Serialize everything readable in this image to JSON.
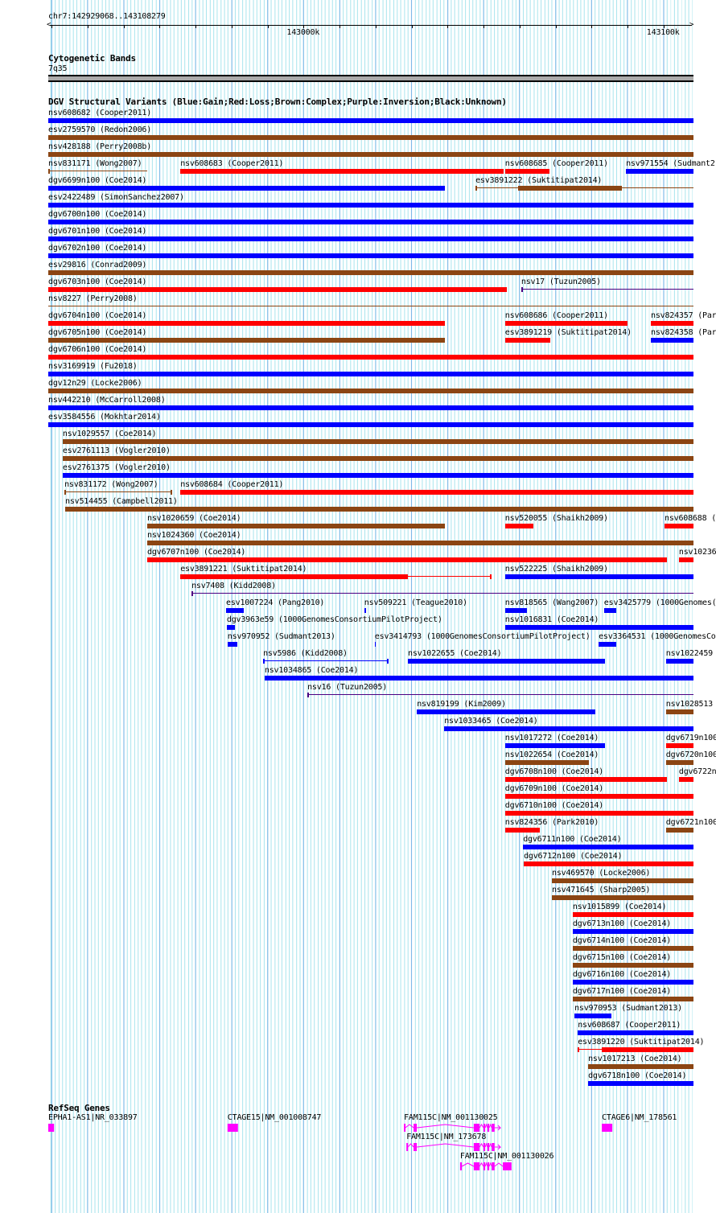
{
  "ruler": {
    "range": "chr7:142929068..143108279",
    "region_start_kb": 142929.068,
    "region_length_kb": 179.2,
    "ticks": [
      {
        "label": "143000k",
        "kb": 143000
      },
      {
        "label": "143100k",
        "kb": 143100
      }
    ]
  },
  "cytoband": {
    "title": "Cytogenetic Bands",
    "band": "7q35"
  },
  "colors": {
    "gain": "#0000ff",
    "loss": "#ff0000",
    "complex": "#8b4513",
    "inversion": "#4b0082",
    "unknown": "#000000",
    "gene": "#ff00ff"
  },
  "dgv": {
    "title": "DGV Structural Variants (Blue:Gain;Red:Loss;Brown:Complex;Purple:Inversion;Black:Unknown)",
    "rows": [
      [
        {
          "l": "nsv608682 (Cooper2011)",
          "s": 0,
          "e": 179.2,
          "c": "gain"
        }
      ],
      [
        {
          "l": "esv2759570 (Redon2006)",
          "s": 0,
          "e": 179.2,
          "c": "complex"
        }
      ],
      [
        {
          "l": "nsv428188 (Perry2008b)",
          "s": 0,
          "e": 179.2,
          "c": "complex"
        }
      ],
      [
        {
          "l": "nsv831171 (Wong2007)",
          "s": 0,
          "e": 27.5,
          "c": "complex",
          "st": "line"
        },
        {
          "l": "nsv608683 (Cooper2011)",
          "s": 36.7,
          "e": 126.5,
          "c": "loss"
        },
        {
          "l": "nsv608685 (Cooper2011)",
          "s": 126.9,
          "e": 139.2,
          "c": "loss"
        },
        {
          "l": "nsv971554 (Sudmant2",
          "s": 160.5,
          "e": 179.2,
          "c": "gain"
        }
      ],
      [
        {
          "l": "dgv6699n100 (Coe2014)",
          "s": 0,
          "e": 110.2,
          "c": "gain"
        },
        {
          "l": "esv3891222 (Suktitipat2014)",
          "s": 118.7,
          "e": 179.2,
          "c": "complex",
          "st": "line",
          "th": [
            130.5,
            159.4
          ]
        }
      ],
      [
        {
          "l": "esv2422489 (SimonSanchez2007)",
          "s": 0,
          "e": 179.2,
          "c": "gain"
        }
      ],
      [
        {
          "l": "dgv6700n100 (Coe2014)",
          "s": 0,
          "e": 179.2,
          "c": "gain"
        }
      ],
      [
        {
          "l": "dgv6701n100 (Coe2014)",
          "s": 0,
          "e": 179.2,
          "c": "gain"
        }
      ],
      [
        {
          "l": "dgv6702n100 (Coe2014)",
          "s": 0,
          "e": 179.2,
          "c": "gain"
        }
      ],
      [
        {
          "l": "esv29816 (Conrad2009)",
          "s": 0,
          "e": 179.2,
          "c": "complex"
        }
      ],
      [
        {
          "l": "dgv6703n100 (Coe2014)",
          "s": 0,
          "e": 127.4,
          "c": "loss"
        },
        {
          "l": "nsv17 (Tuzun2005)",
          "s": 131.4,
          "e": 179.2,
          "c": "inversion",
          "st": "line"
        }
      ],
      [
        {
          "l": "nsv8227 (Perry2008)",
          "s": 0,
          "e": 179.2,
          "c": "complex",
          "st": "line",
          "nt": true
        }
      ],
      [
        {
          "l": "dgv6704n100 (Coe2014)",
          "s": 0,
          "e": 110.2,
          "c": "loss"
        },
        {
          "l": "nsv608686 (Cooper2011)",
          "s": 126.9,
          "e": 161.0,
          "c": "loss"
        },
        {
          "l": "nsv824357 (Par",
          "s": 167.4,
          "e": 179.2,
          "c": "loss"
        }
      ],
      [
        {
          "l": "dgv6705n100 (Coe2014)",
          "s": 0,
          "e": 110.2,
          "c": "complex"
        },
        {
          "l": "esv3891219 (Suktitipat2014)",
          "s": 126.9,
          "e": 139.5,
          "c": "loss"
        },
        {
          "l": "nsv824358 (Par",
          "s": 167.4,
          "e": 179.2,
          "c": "gain"
        }
      ],
      [
        {
          "l": "dgv6706n100 (Coe2014)",
          "s": 0,
          "e": 179.2,
          "c": "loss"
        }
      ],
      [
        {
          "l": "nsv3169919 (Fu2018)",
          "s": 0,
          "e": 179.2,
          "c": "gain"
        }
      ],
      [
        {
          "l": "dgv12n29 (Locke2006)",
          "s": 0,
          "e": 179.2,
          "c": "complex"
        }
      ],
      [
        {
          "l": "nsv442210 (McCarroll2008)",
          "s": 0,
          "e": 179.2,
          "c": "gain"
        }
      ],
      [
        {
          "l": "esv3584556 (Mokhtar2014)",
          "s": 0,
          "e": 179.2,
          "c": "gain"
        }
      ],
      [
        {
          "l": "nsv1029557 (Coe2014)",
          "s": 4.0,
          "e": 179.2,
          "c": "complex"
        }
      ],
      [
        {
          "l": "esv2761113 (Vogler2010)",
          "s": 4.0,
          "e": 179.2,
          "c": "complex"
        }
      ],
      [
        {
          "l": "esv2761375 (Vogler2010)",
          "s": 4.0,
          "e": 179.2,
          "c": "gain"
        }
      ],
      [
        {
          "l": "nsv831172 (Wong2007)",
          "s": 4.5,
          "e": 34.2,
          "c": "complex",
          "st": "line",
          "et": true
        },
        {
          "l": "nsv608684 (Cooper2011)",
          "s": 36.7,
          "e": 179.2,
          "c": "loss"
        }
      ],
      [
        {
          "l": "nsv514455 (Campbell2011)",
          "s": 4.7,
          "e": 179.2,
          "c": "complex"
        }
      ],
      [
        {
          "l": "nsv1020659 (Coe2014)",
          "s": 27.5,
          "e": 110.2,
          "c": "complex"
        },
        {
          "l": "nsv520055 (Shaikh2009)",
          "s": 126.9,
          "e": 134.8,
          "c": "loss"
        },
        {
          "l": "nsv608688 (",
          "s": 171.2,
          "e": 179.2,
          "c": "loss"
        }
      ],
      [
        {
          "l": "nsv1024360 (Coe2014)",
          "s": 27.5,
          "e": 179.2,
          "c": "complex"
        }
      ],
      [
        {
          "l": "dgv6707n100 (Coe2014)",
          "s": 27.5,
          "e": 171.9,
          "c": "loss"
        },
        {
          "l": "nsv10236",
          "s": 175.2,
          "e": 179.2,
          "c": "loss"
        }
      ],
      [
        {
          "l": "esv3891221 (Suktitipat2014)",
          "s": 36.7,
          "e": 122.9,
          "c": "loss",
          "st": "line",
          "th": [
            36.7,
            99.9
          ],
          "et": true
        },
        {
          "l": "nsv522225 (Shaikh2009)",
          "s": 126.9,
          "e": 179.2,
          "c": "gain"
        }
      ],
      [
        {
          "l": "nsv7408 (Kidd2008)",
          "s": 39.8,
          "e": 179.2,
          "c": "inversion",
          "st": "line"
        }
      ],
      [
        {
          "l": "esv1007224 (Pang2010)",
          "s": 49.4,
          "e": 54.3,
          "c": "gain"
        },
        {
          "l": "nsv509221 (Teague2010)",
          "s": 87.8,
          "e": 88.3,
          "c": "gain"
        },
        {
          "l": "nsv818565 (Wang2007)",
          "s": 126.9,
          "e": 133.0,
          "c": "gain"
        },
        {
          "l": "esv3425779 (1000Genomes(",
          "s": 154.4,
          "e": 157.8,
          "c": "gain"
        }
      ],
      [
        {
          "l": "dgv3963e59 (1000GenomesConsortiumPilotProject)",
          "s": 49.6,
          "e": 51.9,
          "c": "gain"
        },
        {
          "l": "nsv1016831 (Coe2014)",
          "s": 126.9,
          "e": 179.2,
          "c": "gain"
        }
      ],
      [
        {
          "l": "nsv970952 (Sudmant2013)",
          "s": 49.8,
          "e": 52.5,
          "c": "gain"
        },
        {
          "l": "esv3414793 (1000GenomesConsortiumPilotProject)",
          "s": 90.7,
          "e": 91.0,
          "c": "gain"
        },
        {
          "l": "esv3364531 (1000GenomesCo",
          "s": 152.9,
          "e": 157.8,
          "c": "gain"
        }
      ],
      [
        {
          "l": "nsv5986 (Kidd2008)",
          "s": 59.7,
          "e": 94.3,
          "c": "gain",
          "st": "line",
          "et": true
        },
        {
          "l": "nsv1022655 (Coe2014)",
          "s": 99.9,
          "e": 154.7,
          "c": "gain"
        },
        {
          "l": "nsv1022459",
          "s": 171.6,
          "e": 179.2,
          "c": "gain"
        }
      ],
      [
        {
          "l": "nsv1034865 (Coe2014)",
          "s": 60.1,
          "e": 179.2,
          "c": "gain"
        }
      ],
      [
        {
          "l": "nsv16 (Tuzun2005)",
          "s": 72.0,
          "e": 179.2,
          "c": "inversion",
          "st": "line"
        }
      ],
      [
        {
          "l": "nsv819199 (Kim2009)",
          "s": 102.4,
          "e": 152.0,
          "c": "gain"
        },
        {
          "l": "nsv1028513",
          "s": 171.6,
          "e": 179.2,
          "c": "complex"
        }
      ],
      [
        {
          "l": "nsv1033465 (Coe2014)",
          "s": 110.0,
          "e": 179.2,
          "c": "gain"
        }
      ],
      [
        {
          "l": "nsv1017272 (Coe2014)",
          "s": 126.9,
          "e": 154.7,
          "c": "gain"
        },
        {
          "l": "dgv6719n100",
          "s": 171.6,
          "e": 179.2,
          "c": "loss"
        }
      ],
      [
        {
          "l": "nsv1022654 (Coe2014)",
          "s": 126.9,
          "e": 150.2,
          "c": "complex"
        },
        {
          "l": "dgv6720n100",
          "s": 171.6,
          "e": 179.2,
          "c": "complex"
        }
      ],
      [
        {
          "l": "dgv6708n100 (Coe2014)",
          "s": 126.9,
          "e": 171.9,
          "c": "loss"
        },
        {
          "l": "dgv6722n",
          "s": 175.2,
          "e": 179.2,
          "c": "loss"
        }
      ],
      [
        {
          "l": "dgv6709n100 (Coe2014)",
          "s": 126.9,
          "e": 179.2,
          "c": "loss"
        }
      ],
      [
        {
          "l": "dgv6710n100 (Coe2014)",
          "s": 126.9,
          "e": 179.2,
          "c": "loss"
        }
      ],
      [
        {
          "l": "nsv824356 (Park2010)",
          "s": 126.9,
          "e": 136.6,
          "c": "loss"
        },
        {
          "l": "dgv6721n100",
          "s": 171.6,
          "e": 179.2,
          "c": "complex"
        }
      ],
      [
        {
          "l": "dgv6711n100 (Coe2014)",
          "s": 131.9,
          "e": 179.2,
          "c": "gain"
        }
      ],
      [
        {
          "l": "dgv6712n100 (Coe2014)",
          "s": 132.1,
          "e": 179.2,
          "c": "loss"
        }
      ],
      [
        {
          "l": "nsv469570 (Locke2006)",
          "s": 139.9,
          "e": 179.2,
          "c": "complex"
        }
      ],
      [
        {
          "l": "nsv471645 (Sharp2005)",
          "s": 139.9,
          "e": 179.2,
          "c": "complex"
        }
      ],
      [
        {
          "l": "nsv1015899 (Coe2014)",
          "s": 145.7,
          "e": 179.2,
          "c": "loss"
        }
      ],
      [
        {
          "l": "dgv6713n100 (Coe2014)",
          "s": 145.7,
          "e": 179.2,
          "c": "gain"
        }
      ],
      [
        {
          "l": "dgv6714n100 (Coe2014)",
          "s": 145.7,
          "e": 179.2,
          "c": "complex"
        }
      ],
      [
        {
          "l": "dgv6715n100 (Coe2014)",
          "s": 145.7,
          "e": 179.2,
          "c": "complex"
        }
      ],
      [
        {
          "l": "dgv6716n100 (Coe2014)",
          "s": 145.7,
          "e": 179.2,
          "c": "gain"
        }
      ],
      [
        {
          "l": "dgv6717n100 (Coe2014)",
          "s": 145.7,
          "e": 179.2,
          "c": "complex"
        }
      ],
      [
        {
          "l": "nsv970953 (Sudmant2013)",
          "s": 146.2,
          "e": 156.5,
          "c": "gain"
        }
      ],
      [
        {
          "l": "nsv608687 (Cooper2011)",
          "s": 147.1,
          "e": 179.2,
          "c": "gain"
        }
      ],
      [
        {
          "l": "esv3891220 (Suktitipat2014)",
          "s": 147.1,
          "e": 179.2,
          "c": "loss",
          "st": "line",
          "th": [
            153.8,
            179.2
          ]
        }
      ],
      [
        {
          "l": "nsv1017213 (Coe2014)",
          "s": 150.0,
          "e": 179.2,
          "c": "complex"
        }
      ],
      [
        {
          "l": "dgv6718n100 (Coe2014)",
          "s": 150.0,
          "e": 179.2,
          "c": "gain"
        }
      ]
    ]
  },
  "refseq": {
    "title": "RefSeq Genes",
    "genes": [
      {
        "label": "EPHA1-AS1|NR_033897",
        "row": 0,
        "exons": [
          [
            0,
            1.6
          ]
        ]
      },
      {
        "label": "CTAGE15|NM_001008747",
        "row": 0,
        "exons": [
          [
            49.8,
            52.7
          ]
        ]
      },
      {
        "label": "FAM115C|NM_001130025",
        "row": 0,
        "exons": [
          [
            98.8,
            99.2
          ],
          [
            101.5,
            102.4
          ],
          [
            118.2,
            119.8
          ],
          [
            120.9,
            121.4
          ],
          [
            122.0,
            122.5
          ],
          [
            123.2,
            124.0
          ]
        ],
        "arrow_end": 125.6
      },
      {
        "label": "CTAGE6|NM_178561",
        "row": 0,
        "exons": [
          [
            153.8,
            156.7
          ]
        ]
      },
      {
        "label": "FAM115C|NM_173678",
        "row": 1,
        "exons": [
          [
            99.5,
            99.9
          ],
          [
            101.5,
            102.4
          ],
          [
            118.2,
            119.8
          ],
          [
            120.9,
            121.4
          ],
          [
            122.0,
            122.5
          ],
          [
            123.2,
            124.0
          ]
        ],
        "arrow_end": 125.6
      },
      {
        "label": "FAM115C|NM_001130026",
        "row": 2,
        "exons": [
          [
            114.4,
            114.9
          ],
          [
            118.2,
            119.8
          ],
          [
            120.9,
            121.4
          ],
          [
            122.0,
            122.5
          ],
          [
            123.2,
            124.0
          ],
          [
            126.3,
            128.7
          ]
        ]
      }
    ]
  }
}
